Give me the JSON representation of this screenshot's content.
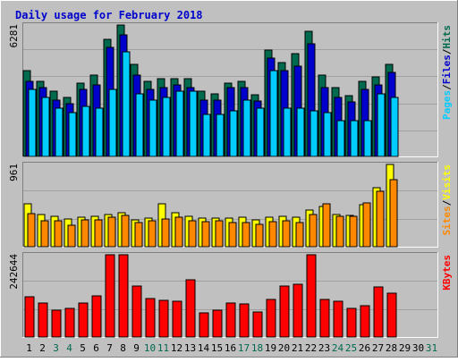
{
  "chart_data": {
    "type": "bar",
    "title": "Daily usage for February 2018",
    "categories": [
      "1",
      "2",
      "3",
      "4",
      "5",
      "6",
      "7",
      "8",
      "9",
      "10",
      "11",
      "12",
      "13",
      "14",
      "15",
      "16",
      "17",
      "18",
      "19",
      "20",
      "21",
      "22",
      "23",
      "24",
      "25",
      "26",
      "27",
      "28",
      "29",
      "30",
      "31"
    ],
    "weekend_days": [
      "3",
      "4",
      "10",
      "11",
      "17",
      "18",
      "24",
      "25",
      "31"
    ],
    "grid": true,
    "colors": {
      "hits": "#006a4e",
      "files": "#0000cc",
      "pages": "#00ccff",
      "visits": "#ffff00",
      "sites": "#ff8800",
      "kbytes": "#ff0000",
      "title": "#0000cc",
      "weekday_label": "#000000",
      "weekend_label": "#006a4e"
    },
    "panels": [
      {
        "id": "hits_files_pages",
        "ymax_label": "6281",
        "ylim": [
          0,
          6281
        ],
        "legend": [
          {
            "label": "Hits",
            "color": "#006a4e"
          },
          {
            "label": "Files",
            "color": "#0000cc"
          },
          {
            "label": "Pages",
            "color": "#00ccff"
          }
        ],
        "series": [
          {
            "name": "Hits",
            "values": [
              4100,
              3600,
              3100,
              2800,
              3500,
              3900,
              5600,
              6281,
              4400,
              3600,
              3700,
              3700,
              3700,
              3100,
              3000,
              3500,
              3600,
              2950,
              5100,
              4500,
              4900,
              6000,
              3900,
              3300,
              2900,
              3600,
              3800,
              4400,
              0,
              0,
              0
            ]
          },
          {
            "name": "Files",
            "values": [
              3600,
              3300,
              2700,
              2500,
              3200,
              3400,
              5200,
              5800,
              3900,
              3200,
              3300,
              3400,
              3300,
              2700,
              2700,
              3300,
              3300,
              2650,
              4700,
              4100,
              4300,
              5400,
              3300,
              2800,
              2600,
              3200,
              3400,
              4000,
              0,
              0,
              0
            ]
          },
          {
            "name": "Pages",
            "values": [
              3200,
              2800,
              2300,
              2100,
              2400,
              2300,
              3200,
              5000,
              3000,
              2700,
              2800,
              3100,
              3100,
              2000,
              2000,
              2200,
              2700,
              2300,
              4100,
              2300,
              2300,
              2200,
              2100,
              1700,
              1700,
              1700,
              3000,
              2800,
              0,
              0,
              0
            ]
          }
        ]
      },
      {
        "id": "visits_sites",
        "ymax_label": "961",
        "ylim": [
          0,
          961
        ],
        "legend": [
          {
            "label": "Visits",
            "color": "#ffff00"
          },
          {
            "label": "Sites",
            "color": "#ff8800"
          }
        ],
        "series": [
          {
            "name": "Visits",
            "values": [
              500,
              380,
              350,
              320,
              340,
              360,
              380,
              400,
              310,
              330,
              500,
              400,
              360,
              330,
              330,
              330,
              340,
              310,
              340,
              360,
              340,
              430,
              470,
              380,
              370,
              490,
              690,
              961
            ]
          },
          {
            "name": "Sites",
            "values": [
              390,
              300,
              300,
              250,
              310,
              310,
              340,
              370,
              280,
              300,
              320,
              340,
              300,
              290,
              300,
              280,
              280,
              260,
              290,
              300,
              280,
              380,
              500,
              350,
              350,
              510,
              650,
              780
            ]
          }
        ]
      },
      {
        "id": "kbytes",
        "ymax_label": "242644",
        "ylim": [
          0,
          242644
        ],
        "legend": [
          {
            "label": "KBytes",
            "color": "#ff0000"
          }
        ],
        "series": [
          {
            "name": "KBytes",
            "values": [
              120000,
              100000,
              80000,
              85000,
              100000,
              122000,
              242644,
              242644,
              150000,
              113000,
              108000,
              105000,
              170000,
              72000,
              80000,
              100000,
              98000,
              73000,
              110000,
              150000,
              155000,
              242644,
              110000,
              105000,
              85000,
              93000,
              148000,
              130000,
              0,
              0,
              0
            ]
          }
        ]
      }
    ]
  }
}
